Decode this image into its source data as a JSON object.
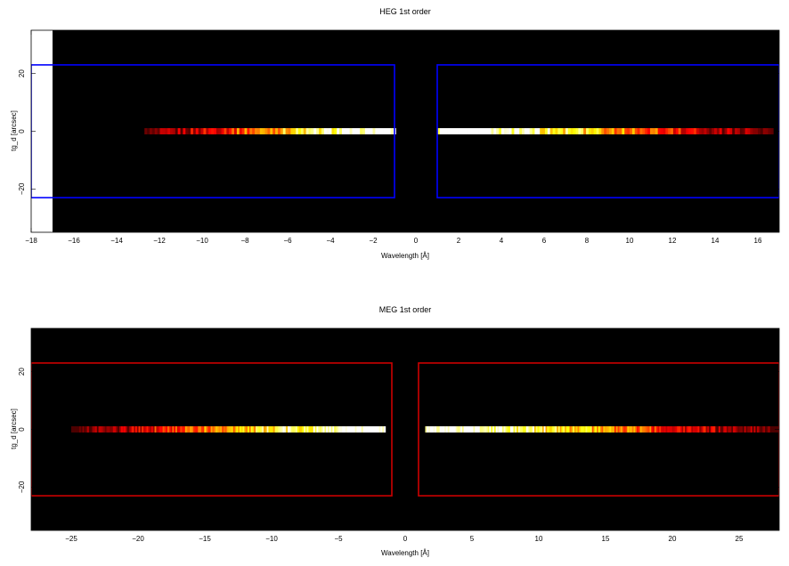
{
  "chart_data": [
    {
      "type": "heatmap",
      "title": "HEG 1st order",
      "xlabel": "Wavelength [Å]",
      "ylabel": "tg_d [arcsec]",
      "xlim": [
        -18,
        17
      ],
      "ylim": [
        -35,
        35
      ],
      "image_extent_x": [
        -17,
        17
      ],
      "x_ticks": [
        -18,
        -16,
        -14,
        -12,
        -10,
        -8,
        -6,
        -4,
        -2,
        0,
        2,
        4,
        6,
        8,
        10,
        12,
        14,
        16
      ],
      "y_ticks": [
        -20,
        0,
        20
      ],
      "colormap": "hot",
      "background_color": "#000000",
      "spectrum": {
        "y": 0,
        "negative_order_x": [
          -12.7,
          -1
        ],
        "positive_order_x": [
          1,
          16.7
        ],
        "brightest_near": [
          -1.9,
          2.3
        ]
      },
      "extraction_regions": {
        "color": "#0000ff",
        "boxes": [
          {
            "x": [
              -18,
              -1
            ],
            "y": [
              -23,
              23
            ]
          },
          {
            "x": [
              1,
              17
            ],
            "y": [
              -23,
              23
            ]
          }
        ]
      }
    },
    {
      "type": "heatmap",
      "title": "MEG 1st order",
      "xlabel": "Wavelength [Å]",
      "ylabel": "tg_d [arcsec]",
      "xlim": [
        -28,
        28
      ],
      "ylim": [
        -35,
        35
      ],
      "image_extent_x": [
        -28,
        28
      ],
      "x_ticks": [
        -25,
        -20,
        -15,
        -10,
        -5,
        0,
        5,
        10,
        15,
        20,
        25
      ],
      "y_ticks": [
        -20,
        0,
        20
      ],
      "colormap": "hot",
      "background_color": "#000000",
      "spectrum": {
        "y": 0,
        "negative_order_x": [
          -25,
          -1.5
        ],
        "positive_order_x": [
          1.5,
          28
        ],
        "brightest_near": [
          -3,
          3
        ]
      },
      "extraction_regions": {
        "color": "#cc0000",
        "boxes": [
          {
            "x": [
              -28,
              -1
            ],
            "y": [
              -23,
              23
            ]
          },
          {
            "x": [
              1,
              28
            ],
            "y": [
              -23,
              23
            ]
          }
        ]
      }
    }
  ]
}
